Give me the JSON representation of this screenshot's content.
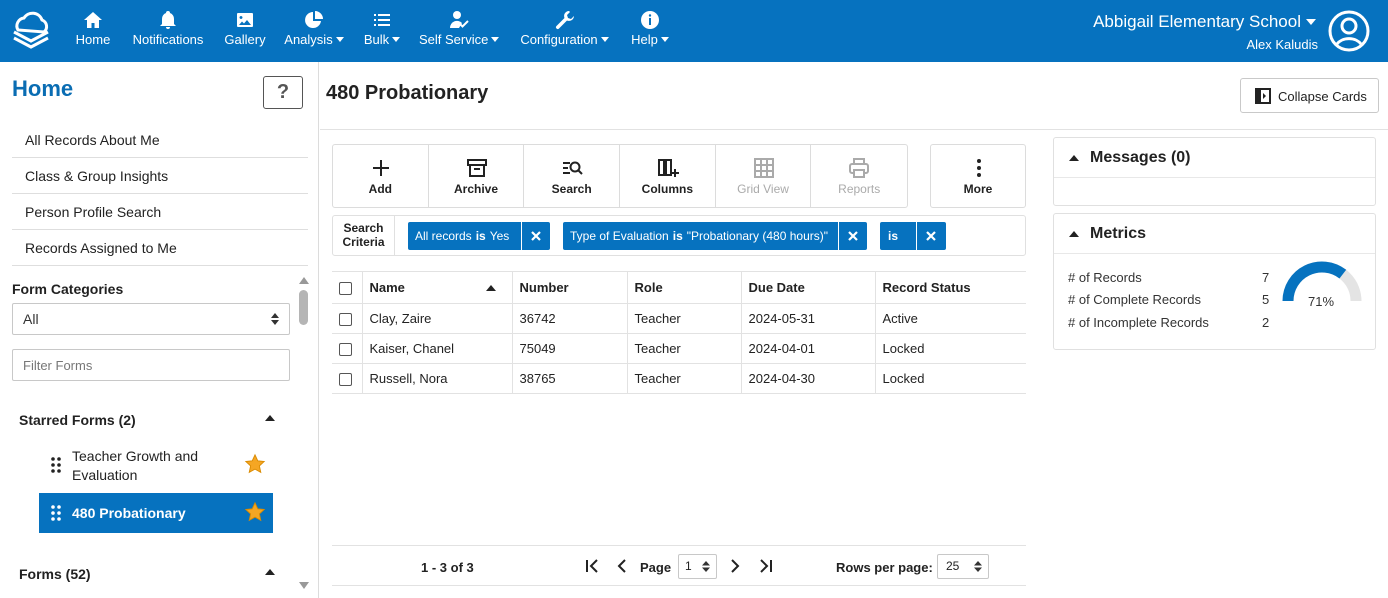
{
  "topnav": {
    "items": [
      {
        "label": "Home",
        "icon": "home-icon",
        "dropdown": false
      },
      {
        "label": "Notifications",
        "icon": "bell-icon",
        "dropdown": false
      },
      {
        "label": "Gallery",
        "icon": "image-icon",
        "dropdown": false
      },
      {
        "label": "Analysis",
        "icon": "pie-chart-icon",
        "dropdown": true
      },
      {
        "label": "Bulk",
        "icon": "list-icon",
        "dropdown": true
      },
      {
        "label": "Self Service",
        "icon": "user-check-icon",
        "dropdown": true
      },
      {
        "label": "Configuration",
        "icon": "wrench-icon",
        "dropdown": true
      },
      {
        "label": "Help",
        "icon": "info-icon",
        "dropdown": true
      }
    ],
    "school": "Abbigail Elementary School",
    "user": "Alex Kaludis",
    "color": "#0672bf"
  },
  "sidebar": {
    "title": "Home",
    "help_label": "?",
    "quick_links": [
      "All Records About Me",
      "Class & Group Insights",
      "Person Profile Search",
      "Records Assigned to Me"
    ],
    "form_categories_label": "Form Categories",
    "form_categories_value": "All",
    "filter_placeholder": "Filter Forms",
    "starred_heading": "Starred Forms (2)",
    "starred_forms": [
      {
        "label": "Teacher Growth and Evaluation",
        "active": false
      },
      {
        "label": "480 Probationary",
        "active": true
      }
    ],
    "forms_heading": "Forms (52)"
  },
  "main": {
    "title": "480 Probationary",
    "collapse_label": "Collapse Cards",
    "toolbar": [
      {
        "label": "Add",
        "icon": "plus-icon",
        "disabled": false
      },
      {
        "label": "Archive",
        "icon": "archive-icon",
        "disabled": false
      },
      {
        "label": "Search",
        "icon": "search-list-icon",
        "disabled": false
      },
      {
        "label": "Columns",
        "icon": "columns-add-icon",
        "disabled": false
      },
      {
        "label": "Grid View",
        "icon": "grid-icon",
        "disabled": true
      },
      {
        "label": "Reports",
        "icon": "printer-icon",
        "disabled": true
      }
    ],
    "more_label": "More",
    "criteria": {
      "label": "Search Criteria",
      "chips": [
        {
          "field": "All records",
          "op": "is",
          "value": "Yes"
        },
        {
          "field": "Type of Evaluation",
          "op": "is",
          "value": "\"Probationary (480 hours)\""
        },
        {
          "field": "",
          "op": "is",
          "value": ""
        }
      ]
    },
    "table": {
      "columns": [
        "Name",
        "Number",
        "Role",
        "Due Date",
        "Record Status"
      ],
      "rows": [
        [
          "Clay, Zaire",
          "36742",
          "Teacher",
          "2024-05-31",
          "Active"
        ],
        [
          "Kaiser, Chanel",
          "75049",
          "Teacher",
          "2024-04-01",
          "Locked"
        ],
        [
          "Russell, Nora",
          "38765",
          "Teacher",
          "2024-04-30",
          "Locked"
        ]
      ]
    },
    "pager": {
      "count": "1 - 3 of 3",
      "page_label": "Page",
      "page_value": "1",
      "rows_label": "Rows per page:",
      "rows_value": "25"
    }
  },
  "cards": {
    "messages_title": "Messages (0)",
    "metrics_title": "Metrics",
    "metrics": [
      {
        "label": "# of Records",
        "value": "7"
      },
      {
        "label": "# of Complete Records",
        "value": "5"
      },
      {
        "label": "# of Incomplete Records",
        "value": "2"
      }
    ],
    "gauge_label": "71%",
    "gauge_fraction": 0.71
  }
}
